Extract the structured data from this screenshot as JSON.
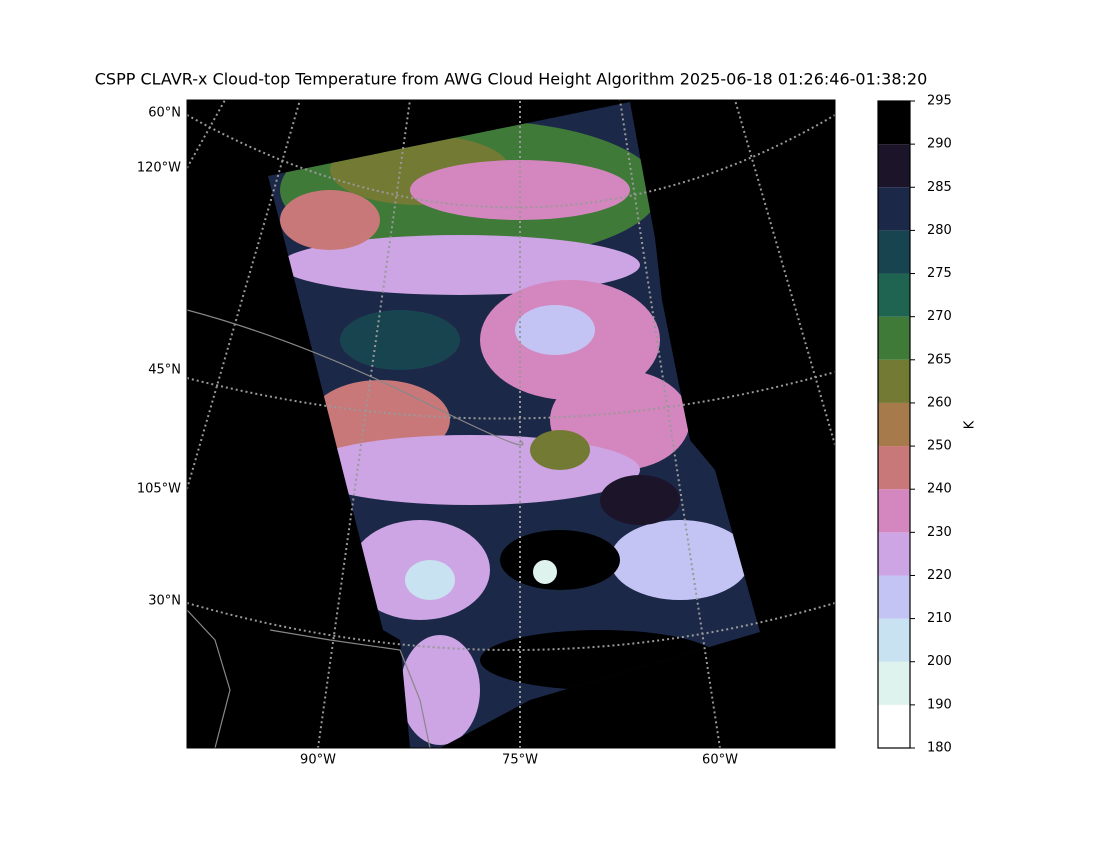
{
  "title": "CSPP CLAVR-x Cloud-top Temperature from AWG Cloud Height Algorithm 2025-06-18 01:26:46-01:38:20",
  "map": {
    "lat_labels": [
      "60°N",
      "45°N",
      "30°N"
    ],
    "lon_labels": [
      "120°W",
      "105°W",
      "90°W",
      "75°W",
      "60°W"
    ]
  },
  "colorbar": {
    "label": "K",
    "boundaries": [
      180,
      190,
      200,
      210,
      220,
      230,
      240,
      250,
      260,
      265,
      270,
      275,
      280,
      285,
      290,
      295
    ],
    "colors": [
      "#ffffff",
      "#dff3ee",
      "#c8e2f2",
      "#c4c4f4",
      "#cda4e4",
      "#d487bf",
      "#c87878",
      "#a67a4a",
      "#737a34",
      "#3f7a38",
      "#1e6450",
      "#184450",
      "#1c2848",
      "#1c1428",
      "#000000"
    ]
  }
}
